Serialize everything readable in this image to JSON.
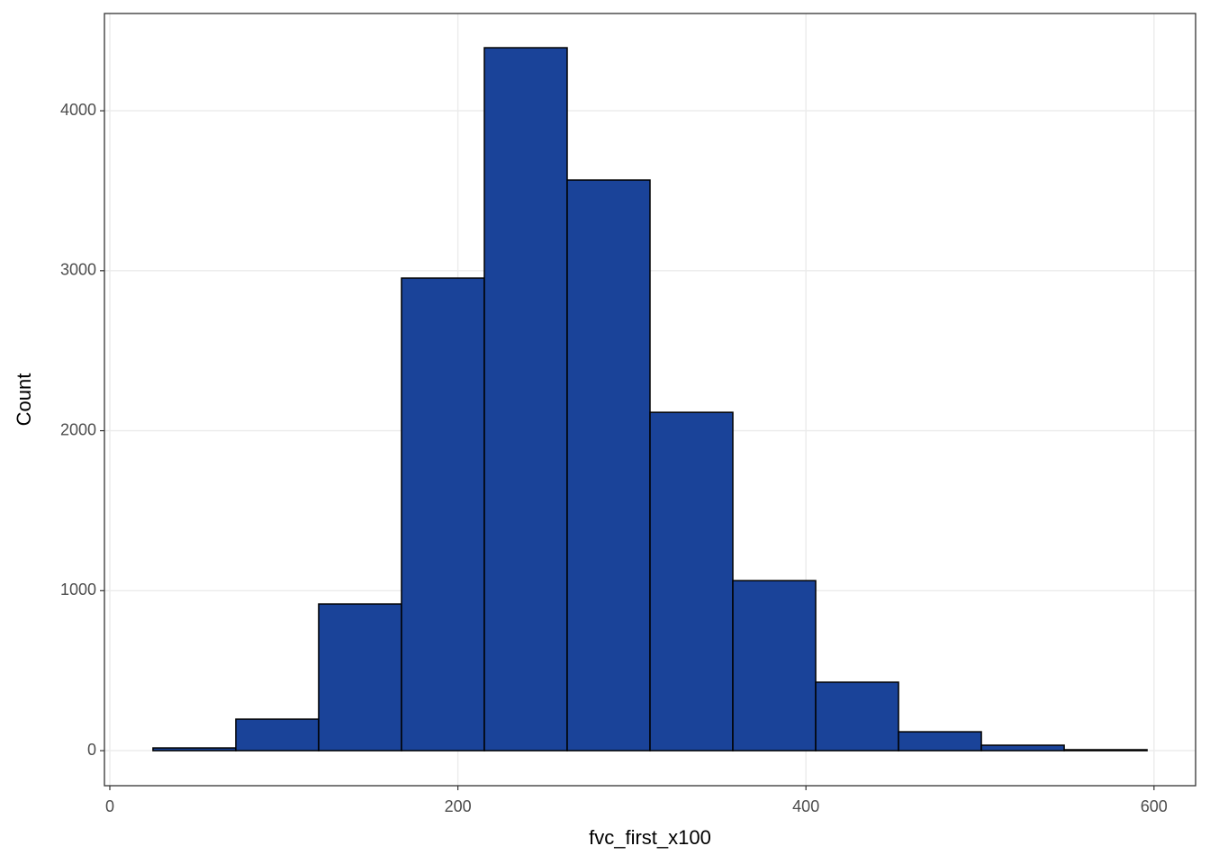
{
  "chart_data": {
    "type": "histogram",
    "x_label": "fvc_first_x100",
    "y_label": "Count",
    "bins": [
      24.8,
      72.4,
      120.0,
      167.6,
      215.2,
      262.8,
      310.4,
      358.0,
      405.6,
      453.2,
      500.8,
      548.4,
      596.0
    ],
    "values": [
      17,
      197,
      917,
      2954,
      4394,
      3567,
      2115,
      1063,
      428,
      118,
      34,
      6
    ],
    "color": "#1a4399",
    "edgecolor": "#000000",
    "xlim": [
      -3.1,
      623.9
    ],
    "xticks": [
      0,
      200,
      400,
      600
    ],
    "ylim": [
      -219,
      4608
    ],
    "yticks": [
      0,
      1000,
      2000,
      3000,
      4000
    ],
    "grid": true
  }
}
